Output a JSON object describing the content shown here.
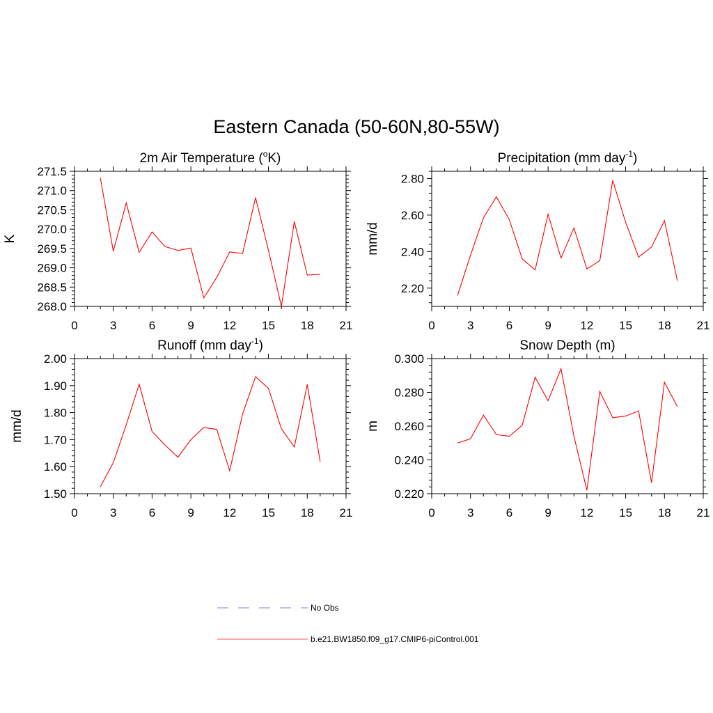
{
  "title": "Eastern Canada (50-60N,80-55W)",
  "chart_data": [
    {
      "type": "line",
      "title_main": "2m Air Temperature (",
      "title_sup": "o",
      "title_tail": "K)",
      "ylabel": "K",
      "xlabel": "",
      "xlim": [
        0,
        21
      ],
      "ylim": [
        268.0,
        271.5
      ],
      "xticks": [
        0,
        3,
        6,
        9,
        12,
        15,
        18,
        21
      ],
      "yticks": [
        "268.0",
        "268.5",
        "269.0",
        "269.5",
        "270.0",
        "270.5",
        "271.0",
        "271.5"
      ],
      "ytick_values": [
        268.0,
        268.5,
        269.0,
        269.5,
        270.0,
        270.5,
        271.0,
        271.5
      ],
      "x": [
        2,
        3,
        4,
        5,
        6,
        7,
        8,
        9,
        10,
        11,
        12,
        13,
        14,
        15,
        16,
        17,
        18,
        19
      ],
      "series": [
        {
          "values": [
            271.33,
            269.43,
            270.68,
            269.4,
            269.93,
            269.55,
            269.45,
            269.51,
            268.22,
            268.75,
            269.41,
            269.37,
            270.82,
            269.45,
            268.0,
            270.2,
            268.81,
            268.83
          ]
        }
      ]
    },
    {
      "type": "line",
      "title_main": "Precipitation (mm day",
      "title_sup": "-1",
      "title_tail": ")",
      "ylabel": "mm/d",
      "xlabel": "",
      "xlim": [
        0,
        21
      ],
      "ylim": [
        2.1,
        2.84
      ],
      "xticks": [
        0,
        3,
        6,
        9,
        12,
        15,
        18,
        21
      ],
      "yticks": [
        "2.20",
        "2.40",
        "2.60",
        "2.80"
      ],
      "ytick_values": [
        2.2,
        2.4,
        2.6,
        2.8
      ],
      "x": [
        2,
        3,
        4,
        5,
        6,
        7,
        8,
        9,
        10,
        11,
        12,
        13,
        14,
        15,
        16,
        17,
        18,
        19
      ],
      "series": [
        {
          "values": [
            2.16,
            2.38,
            2.585,
            2.7,
            2.575,
            2.36,
            2.3,
            2.605,
            2.365,
            2.53,
            2.305,
            2.35,
            2.79,
            2.56,
            2.37,
            2.425,
            2.57,
            2.24
          ]
        }
      ]
    },
    {
      "type": "line",
      "title_main": "Runoff (mm day",
      "title_sup": "-1",
      "title_tail": ")",
      "ylabel": "mm/d",
      "xlabel": "",
      "xlim": [
        0,
        21
      ],
      "ylim": [
        1.5,
        2.0
      ],
      "xticks": [
        0,
        3,
        6,
        9,
        12,
        15,
        18,
        21
      ],
      "yticks": [
        "1.50",
        "1.60",
        "1.70",
        "1.80",
        "1.90",
        "2.00"
      ],
      "ytick_values": [
        1.5,
        1.6,
        1.7,
        1.8,
        1.9,
        2.0
      ],
      "x": [
        2,
        3,
        4,
        5,
        6,
        7,
        8,
        9,
        10,
        11,
        12,
        13,
        14,
        15,
        16,
        17,
        18,
        19
      ],
      "series": [
        {
          "values": [
            1.525,
            1.615,
            1.755,
            1.905,
            1.73,
            1.68,
            1.635,
            1.7,
            1.745,
            1.738,
            1.585,
            1.795,
            1.933,
            1.89,
            1.74,
            1.673,
            1.904,
            1.618
          ]
        }
      ]
    },
    {
      "type": "line",
      "title_main": "Snow Depth (m)",
      "title_sup": "",
      "title_tail": "",
      "ylabel": "m",
      "xlabel": "",
      "xlim": [
        0,
        21
      ],
      "ylim": [
        0.22,
        0.3
      ],
      "xticks": [
        0,
        3,
        6,
        9,
        12,
        15,
        18,
        21
      ],
      "yticks": [
        "0.220",
        "0.240",
        "0.260",
        "0.280",
        "0.300"
      ],
      "ytick_values": [
        0.22,
        0.24,
        0.26,
        0.28,
        0.3
      ],
      "x": [
        2,
        3,
        4,
        5,
        6,
        7,
        8,
        9,
        10,
        11,
        12,
        13,
        14,
        15,
        16,
        17,
        18,
        19
      ],
      "series": [
        {
          "values": [
            0.25,
            0.2525,
            0.2665,
            0.255,
            0.254,
            0.2605,
            0.289,
            0.275,
            0.294,
            0.254,
            0.222,
            0.2805,
            0.265,
            0.266,
            0.269,
            0.2265,
            0.286,
            0.2715
          ]
        }
      ]
    }
  ],
  "legend": [
    {
      "label": "No Obs",
      "color": "#9999ee",
      "dash": true
    },
    {
      "label": "b.e21.BW1850.f09_g17.CMIP6-piControl.001",
      "color": "#ff7777",
      "dash": false
    }
  ],
  "colors": {
    "line": "#ff0000",
    "axes": "#000000"
  }
}
